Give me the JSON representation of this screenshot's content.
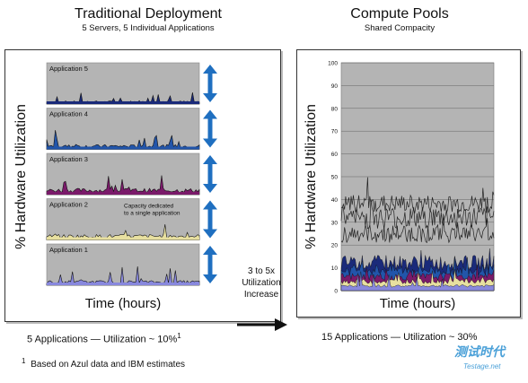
{
  "left": {
    "title": "Traditional Deployment",
    "subtitle": "5 Servers, 5 Individual Applications",
    "ylabel": "% Hardware Utilization",
    "xlabel": "Time (hours)",
    "caption_main": "5 Applications — Utilization ~ 10%",
    "caption_sup": "1",
    "annotation": "Capacity dedicated to a single application",
    "annotation_line1": "Capacity dedicated",
    "annotation_line2": "to a single application"
  },
  "right": {
    "title": "Compute Pools",
    "subtitle": "Shared Compacity",
    "ylabel": "% Hardware Utilization",
    "xlabel": "Time (hours)",
    "caption": "15 Applications — Utilization ~ 30%"
  },
  "middle": {
    "line1": "3 to 5x",
    "line2": "Utilization",
    "line3": "Increase"
  },
  "footnote": {
    "sup": "1",
    "text": "Based on Azul data and IBM estimates"
  },
  "watermark": {
    "main": "测试时代",
    "sub": "Testage.net"
  },
  "colors": {
    "plot_bg": "#b4b4b4",
    "arrow": "#1f6fc0",
    "app5": "#1a2a7a",
    "app4": "#2255aa",
    "app3": "#7a1a6a",
    "app2": "#e8e0a0",
    "app1": "#8888dd"
  },
  "chart_data": [
    {
      "type": "area",
      "title": "Traditional Deployment",
      "subtitle": "5 Servers, 5 Individual Applications",
      "ylabel": "% Hardware Utilization",
      "xlabel": "Time (hours)",
      "panels": [
        {
          "name": "Application 5",
          "color": "#1a2a7a",
          "base_pct": 4,
          "peak_pct": 18
        },
        {
          "name": "Application 4",
          "color": "#2255aa",
          "base_pct": 6,
          "peak_pct": 30
        },
        {
          "name": "Application 3",
          "color": "#7a1a6a",
          "base_pct": 8,
          "peak_pct": 35
        },
        {
          "name": "Application 2",
          "color": "#e8e0a0",
          "base_pct": 7,
          "peak_pct": 28
        },
        {
          "name": "Application 1",
          "color": "#8888dd",
          "base_pct": 6,
          "peak_pct": 30
        }
      ]
    },
    {
      "type": "area",
      "title": "Compute Pools",
      "subtitle": "Shared Compacity",
      "ylabel": "% Hardware Utilization",
      "xlabel": "Time (hours)",
      "ylim": [
        0,
        100
      ],
      "yticks": [
        0,
        10,
        20,
        30,
        40,
        50,
        60,
        70,
        80,
        90,
        100
      ],
      "grid": true,
      "stacked_bands": [
        {
          "color": "#8888dd",
          "level": 2
        },
        {
          "color": "#e8e0a0",
          "level": 4
        },
        {
          "color": "#7a1a6a",
          "level": 6
        },
        {
          "color": "#2255aa",
          "level": 9
        },
        {
          "color": "#1a2a7a",
          "level": 12
        }
      ],
      "upper_lines": [
        {
          "level": 38,
          "range": 8
        },
        {
          "level": 32,
          "range": 10
        },
        {
          "level": 25,
          "range": 8
        }
      ]
    }
  ]
}
